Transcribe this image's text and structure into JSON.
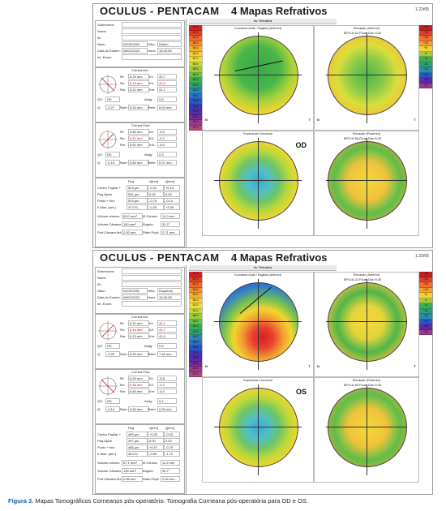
{
  "reports": [
    {
      "title": "OCULUS  -  PENTACAM",
      "subtitle": "4 Mapas Refrativos",
      "version": "1.22r05",
      "eye": "OD",
      "av_label": "Av. Refrativa",
      "fields": {
        "sobrenome": "Sobrenome",
        "nome": "Nome",
        "id": "ID:",
        "nasc": "Nasc.:",
        "nasc_val": "02/09/1992",
        "olho": "Olho:",
        "olho_val": "Direito",
        "data_exame": "Data do Exame:",
        "data_val": "06/01/2023",
        "hora": "Hora:",
        "hora_val": "15:29:59",
        "inf_exam": "Inf. Exam:"
      },
      "cornea_ant": "Córnea Ant.",
      "cornea_post": "Córnea Post.",
      "ant": {
        "rf": "8.29 mm",
        "rs": "8.13 mm",
        "rm": "8.21 mm",
        "k1": "40.7",
        "k2": "41.5",
        "km": "41.1",
        "astig": "0.8",
        "qs": "OK",
        "q": "-0.27",
        "rper": "8.34 mm",
        "rmin": "8.03 mm"
      },
      "post": {
        "rf": "6.83 mm",
        "rs": "6.41 mm",
        "rm": "6.62 mm",
        "k1": "-5.9",
        "k2": "-6.2",
        "km": "-6.0",
        "astig": "0.3",
        "qs": "OK",
        "q": "-0.19",
        "rper": "6.80 mm",
        "rmin": "6.37 mm"
      },
      "table": {
        "centro": "523 µm",
        "centro_x": "-0.20",
        "centro_y": "+0.14",
        "apice": "531 µm",
        "apice_x": "0.00",
        "apice_y": "0.00",
        "fino": "519 µm",
        "fino_x": "-0.76",
        "fino_y": "-0.14",
        "kmax": "47.0 D",
        "kmax_x": "-0.28",
        "kmax_y": "+2.06"
      },
      "volume_cornea": "59.0 mm³",
      "dcornea": "12.0 mm",
      "volume_camara": "150 mm³",
      "angulo": "31.2°",
      "prof_camara": "2.92 mm",
      "diam_pupila": "2.71 mm",
      "quad_labels": [
        "Curvatura Axial / Sagittal (Anterior)",
        "Elevação (Anterior)",
        "Espessura Corneana",
        "Elevação (Posterior)"
      ],
      "scale_top": [
        "64.0",
        "62.0",
        "60.0",
        "58.0",
        "56.0",
        "54.0",
        "52.0",
        "50.0",
        "48.0",
        "46.0",
        "44.0",
        "42.0",
        "40.0",
        "38.0",
        "36.0",
        "34.0",
        "32.0",
        "30.0",
        "28.0",
        "26.0"
      ],
      "scale_right": [
        "+25",
        "+20",
        "+15",
        "+10",
        "+5",
        "0",
        "-5",
        "-10",
        "-15",
        "-20",
        "-25",
        "-30"
      ]
    },
    {
      "title": "OCULUS  -  PENTACAM",
      "subtitle": "4 Mapas Refrativos",
      "version": "1.22r05",
      "eye": "OS",
      "av_label": "Av. Refrativa",
      "fields": {
        "sobrenome": "Sobrenome",
        "nome": "Nome",
        "id": "ID:",
        "nasc": "Nasc.:",
        "nasc_val": "02/09/1992",
        "olho": "Olho:",
        "olho_val": "Esquerdo",
        "data_exame": "Data do Exame:",
        "data_val": "06/01/2023",
        "hora": "Hora:",
        "hora_val": "15:30:28",
        "inf_exam": "Inf. Exam:"
      },
      "cornea_ant": "Córnea Ant.",
      "cornea_post": "Córnea Post.",
      "ant": {
        "rf": "8.31 mm",
        "rs": "8.16 mm",
        "rm": "8.23 mm",
        "k1": "41.1",
        "k2": "41.7",
        "km": "41.4",
        "astig": "0.6",
        "qs": "OK",
        "q": "-0.29",
        "rper": "8.25 mm",
        "rmin": "7.46 mm"
      },
      "post": {
        "rf": "6.90 mm",
        "rs": "6.48 mm",
        "rm": "6.69 mm",
        "k1": "-5.8",
        "k2": "-6.3",
        "km": "-6.0",
        "astig": "0.4",
        "qs": "OK",
        "q": "-0.14",
        "rper": "6.86 mm",
        "rmin": "6.39 mm"
      },
      "table": {
        "centro": "495 µm",
        "centro_x": "+0.29",
        "centro_y": "-0.03",
        "apice": "497 µm",
        "apice_x": "0.00",
        "apice_y": "0.00",
        "fino": "486 µm",
        "fino_x": "+0.97",
        "fino_y": "-0.75",
        "kmax": "46.6 D",
        "kmax_x": "-0.56",
        "kmax_y": "-1.72"
      },
      "volume_cornea": "57.1 mm³",
      "dcornea": "11.9 mm",
      "volume_camara": "135 mm³",
      "angulo": "30.7°",
      "prof_camara": "2.85 mm",
      "diam_pupila": "2.54 mm",
      "quad_labels": [
        "Curvatura Axial / Sagittal (Anterior)",
        "Elevação (Anterior)",
        "Espessura Corneana",
        "Elevação (Posterior)"
      ],
      "scale_top": [
        "64.0",
        "62.0",
        "60.0",
        "58.0",
        "56.0",
        "54.0",
        "52.0",
        "50.0",
        "48.0",
        "46.0",
        "44.0",
        "42.0",
        "40.0",
        "38.0",
        "36.0",
        "34.0",
        "32.0",
        "30.0",
        "28.0",
        "26.0"
      ],
      "scale_right": [
        "+25",
        "+20",
        "+15",
        "+10",
        "+5",
        "0",
        "-5",
        "-10",
        "-15",
        "-20",
        "-25",
        "-30"
      ]
    }
  ],
  "labels": {
    "rf": "Rf:",
    "rs": "Rs:",
    "rm": "Rm:",
    "k1": "K1:",
    "k2": "K2:",
    "km": "Km:",
    "qs": "QS:",
    "astig": "Astig:",
    "q": "Q:",
    "rper": "Rper:",
    "rmin": "Rmin:",
    "paq": "Paq",
    "x": "x[mm]",
    "y": "y[mm]",
    "centro": "Centro Pupilar +",
    "apice": "Paq.Ápice",
    "fino": "Ponto + fino",
    "kmax": "K Max. (ant.)",
    "vcornea": "Volume córnea:",
    "dcorn": "Ø Córnea:",
    "vcam": "Volume Câmara:",
    "ang": "Ângulo:",
    "prof": "Prof.Câmara Ant.:",
    "pup": "Diâm.Pupil.:",
    "elev_ant_bfs": "BFS=8.22 Float, Dia=9.00",
    "elev_post_bfs": "BFS=6.66 Float, Dia=9.00",
    "nasal": "N",
    "temporal": "T",
    "deg90": "90°",
    "deg270": "270°",
    "ticks": [
      "8",
      "6",
      "4",
      "2",
      "0",
      "2",
      "4",
      "6",
      "8"
    ]
  },
  "caption": {
    "fig": "Figura 3.",
    "text": " Mapas Tomográficos Corneanos pós-operatório. Tomografia Corneana pós-operatória para OD e OS."
  }
}
